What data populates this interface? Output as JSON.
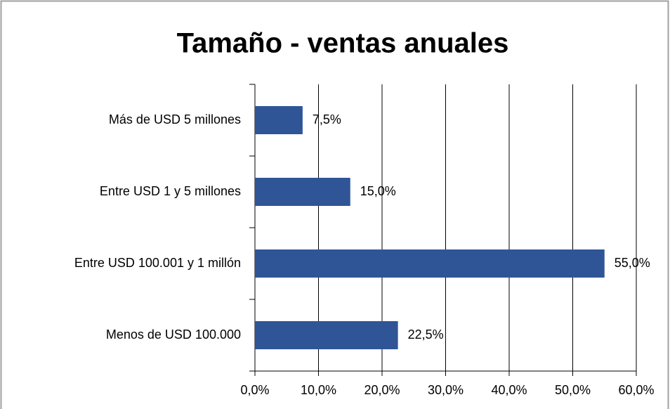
{
  "chart_data": {
    "type": "barh",
    "title": "Tamaño - ventas anuales",
    "categories": [
      "Más de USD 5 millones",
      "Entre USD 1 y 5 millones",
      "Entre USD 100.001 y 1 millón",
      "Menos de USD 100.000"
    ],
    "values": [
      7.5,
      15,
      55,
      22.5
    ],
    "value_labels": [
      "7,5%",
      "15,0%",
      "55,0%",
      "22,5%"
    ],
    "color": "#2f5597",
    "xlim": [
      0,
      60
    ],
    "xticks": [
      {
        "value": 0,
        "label": "0,0%"
      },
      {
        "value": 10,
        "label": "10,0%"
      },
      {
        "value": 20,
        "label": "20,0%"
      },
      {
        "value": 30,
        "label": "30,0%"
      },
      {
        "value": 40,
        "label": "40,0%"
      },
      {
        "value": 50,
        "label": "50,0%"
      },
      {
        "value": 60,
        "label": "60,0%"
      }
    ],
    "grid": true
  }
}
